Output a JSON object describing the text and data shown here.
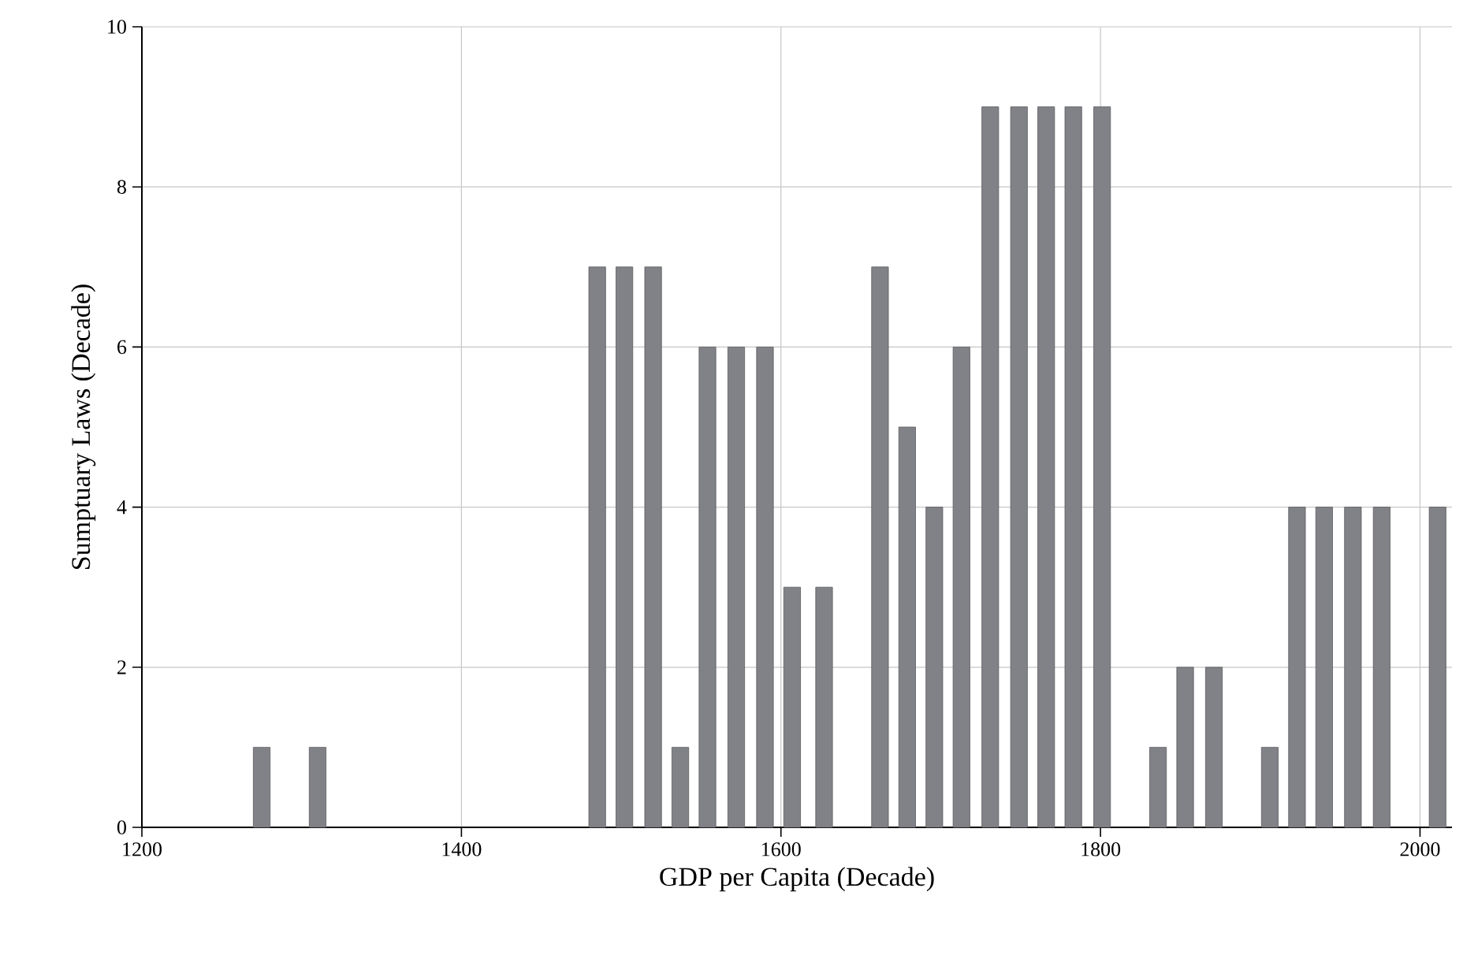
{
  "chart_data": {
    "type": "bar",
    "xlabel": "GDP per Capita (Decade)",
    "ylabel": "Sumptuary Laws (Decade)",
    "x": [
      1275,
      1310,
      1485,
      1502,
      1520,
      1537,
      1554,
      1572,
      1590,
      1607,
      1627,
      1662,
      1679,
      1696,
      1713,
      1731,
      1749,
      1766,
      1783,
      1801,
      1836,
      1853,
      1871,
      1906,
      1923,
      1940,
      1958,
      1976,
      2011
    ],
    "values": [
      1,
      1,
      7,
      7,
      7,
      1,
      6,
      6,
      6,
      3,
      3,
      7,
      5,
      4,
      6,
      9,
      9,
      9,
      9,
      9,
      1,
      2,
      2,
      1,
      4,
      4,
      4,
      4,
      4
    ],
    "color": "#818287",
    "xlim": [
      1200,
      2020
    ],
    "xticks": [
      1200,
      1400,
      1600,
      1800,
      2000
    ],
    "ylim": [
      0,
      10
    ],
    "yticks": [
      0,
      2,
      4,
      6,
      8,
      10
    ],
    "grid": true
  }
}
